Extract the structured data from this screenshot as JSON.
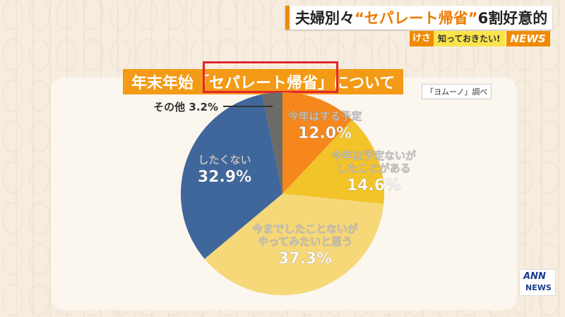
{
  "headline": {
    "part1": "夫婦別々",
    "accent": "“セパレート帰省”",
    "part2": "6割好意的"
  },
  "corner": {
    "keka": "けさ",
    "know": "知っておきたい!",
    "news": "NEWS"
  },
  "logo": {
    "top": "ANN",
    "bottom": "NEWS"
  },
  "colors": {
    "orange": "#f39a16",
    "slice_plan": "#f5871d",
    "slice_experienced": "#f3c32a",
    "slice_want": "#f6d879",
    "slice_no": "#3f679c",
    "slice_other": "#6b6b68",
    "highlight_box": "#e3262d"
  },
  "chart_data": {
    "type": "pie",
    "title": "年末年始「セパレート帰省」について",
    "source": "「ヨムーノ」調べ",
    "slices": [
      {
        "lines": [
          "今年はする予定"
        ],
        "value": 12.0,
        "value_label": "12.0%",
        "color": "#f5871d"
      },
      {
        "lines": [
          "今年は予定ないが",
          "したことがある"
        ],
        "value": 14.6,
        "value_label": "14.6%",
        "color": "#f3c32a"
      },
      {
        "lines": [
          "今までしたことないが",
          "やってみたいと思う"
        ],
        "value": 37.3,
        "value_label": "37.3%",
        "color": "#f6d879"
      },
      {
        "lines": [
          "したくない"
        ],
        "value": 32.9,
        "value_label": "32.9%",
        "color": "#3f679c"
      },
      {
        "lines": [
          "その他"
        ],
        "value": 3.2,
        "value_label": "3.2%",
        "color": "#6b6b68"
      }
    ]
  }
}
